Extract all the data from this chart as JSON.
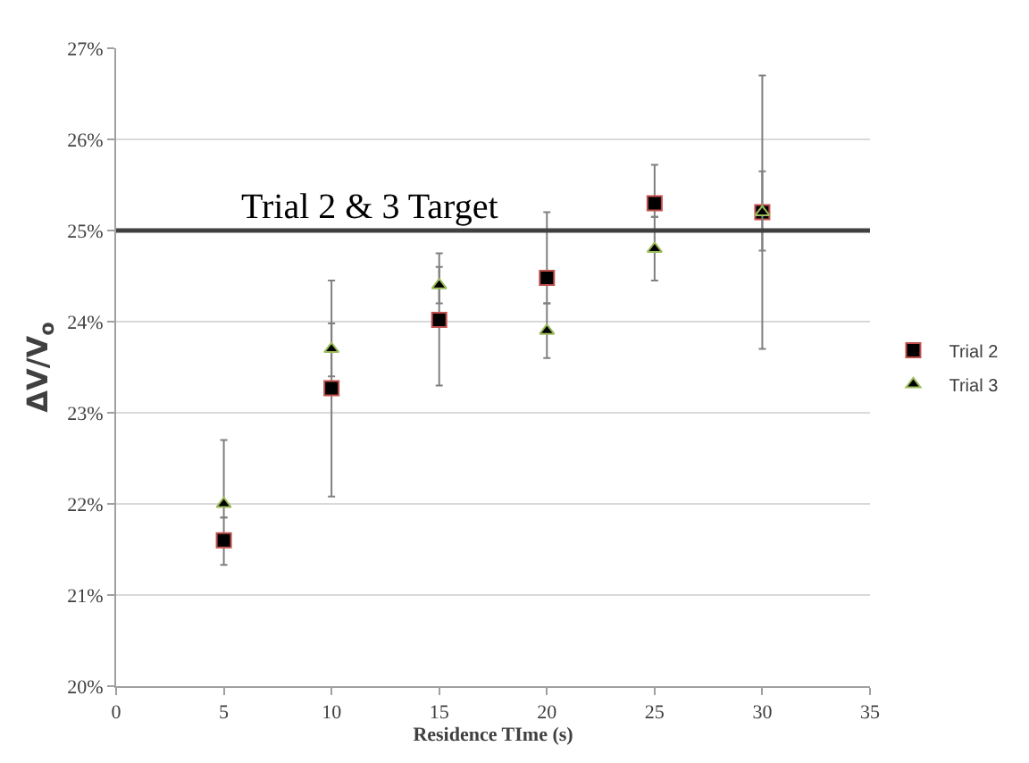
{
  "chart_data": {
    "type": "scatter",
    "xlabel": "Residence TIme (s)",
    "ylabel": "ΔV/V$_{o}$",
    "x": [
      5,
      10,
      15,
      20,
      25,
      30
    ],
    "series": [
      {
        "name": "Trial 2",
        "color": "#000000",
        "marker": "square",
        "values": [
          21.6,
          23.27,
          24.02,
          24.48,
          25.3,
          25.2
        ],
        "errors": [
          [
            21.33,
            21.85
          ],
          [
            22.08,
            23.98
          ],
          [
            23.3,
            24.6
          ],
          [
            24.2,
            25.2
          ],
          [
            25.15,
            25.72
          ],
          [
            24.78,
            25.65
          ]
        ]
      },
      {
        "name": "Trial 3",
        "color": "#000000",
        "marker": "triangle",
        "values": [
          22.0,
          23.7,
          24.4,
          23.9,
          24.8,
          25.2
        ],
        "errors": [
          [
            21.85,
            22.7
          ],
          [
            23.4,
            24.45
          ],
          [
            24.2,
            24.75
          ],
          [
            23.6,
            24.2
          ],
          [
            24.45,
            25.15
          ],
          [
            23.7,
            26.7
          ]
        ]
      }
    ],
    "xlim": [
      0,
      35
    ],
    "xticks": [
      0,
      5,
      10,
      15,
      20,
      25,
      30,
      35
    ],
    "ylim": [
      20,
      27
    ],
    "yticks": [
      {
        "value": 20,
        "label": "20%"
      },
      {
        "value": 21,
        "label": "21%"
      },
      {
        "value": 22,
        "label": "22%"
      },
      {
        "value": 23,
        "label": "23%"
      },
      {
        "value": 24,
        "label": "24%"
      },
      {
        "value": 25,
        "label": "25%"
      },
      {
        "value": 26,
        "label": "26%"
      },
      {
        "value": 27,
        "label": "27%"
      }
    ],
    "ref_lines": [
      {
        "axis": "y",
        "value": 25,
        "label": "Trial 2 & 3 Target",
        "color": "#404040"
      }
    ],
    "grid": "y",
    "legend": "right"
  }
}
